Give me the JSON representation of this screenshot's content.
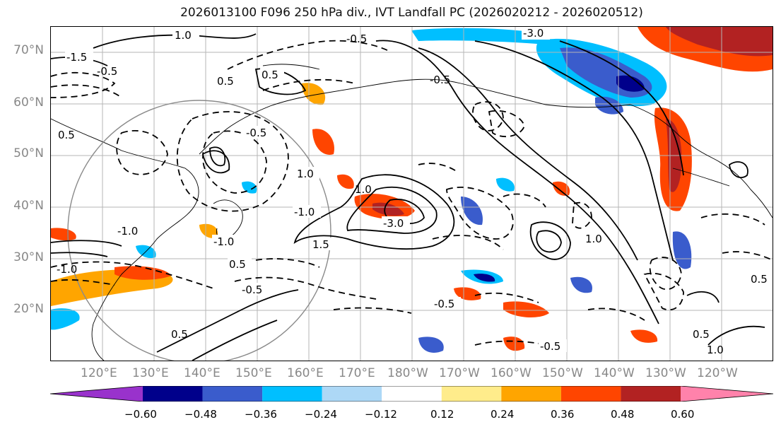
{
  "title": "2026013100 F096 250 hPa div., IVT Landfall PC (2026020212 - 2026020512)",
  "map": {
    "lat_labels": [
      "70°N",
      "60°N",
      "50°N",
      "40°N",
      "30°N",
      "20°N"
    ],
    "lon_labels": [
      "120°E",
      "130°E",
      "140°E",
      "150°E",
      "160°E",
      "170°E",
      "180°W",
      "170°W",
      "160°W",
      "150°W",
      "140°W",
      "130°W",
      "120°W"
    ],
    "contour_labels": [
      "1.0",
      "-1.5",
      "-0.5",
      "0.5",
      "-3.0",
      "-0.5",
      "-0.5",
      "0.5",
      "-1.0",
      "1.0",
      "-1.0",
      "0.5",
      "-3.0",
      "1.5",
      "-1.0",
      "0.5",
      "-0.5",
      "-0.5",
      "1.0",
      "-0.5",
      "1.0",
      "0.5",
      "-1.0",
      "0.5",
      "0.5",
      "1.0",
      "-0.5"
    ]
  },
  "colorbar": {
    "colors": [
      "#9932cc",
      "#00008b",
      "#3a5ccc",
      "#00bfff",
      "#add8f6",
      "#ffffff",
      "#ffec8b",
      "#ffa500",
      "#ff4500",
      "#b22222",
      "#ff82ab"
    ],
    "ticks": [
      "−0.60",
      "−0.48",
      "−0.36",
      "−0.24",
      "−0.12",
      "0.12",
      "0.24",
      "0.36",
      "0.48",
      "0.60"
    ]
  }
}
